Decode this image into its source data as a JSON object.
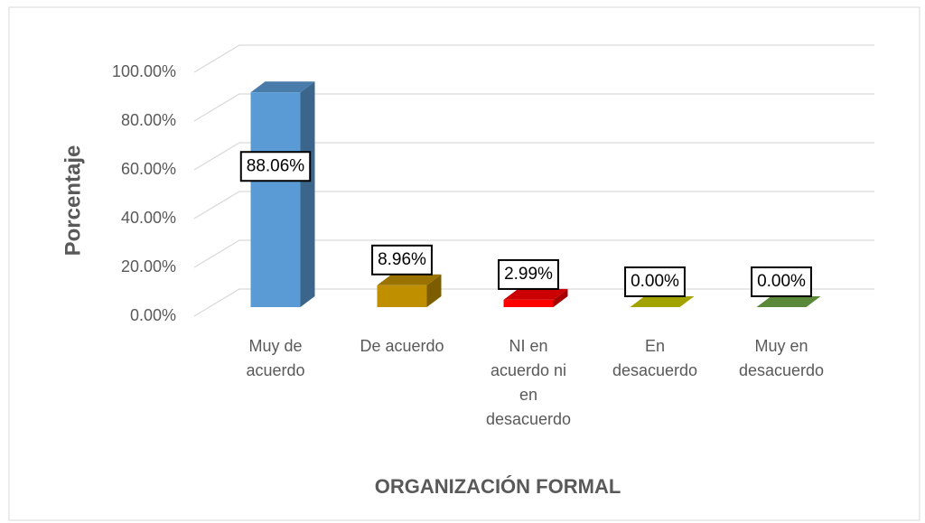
{
  "chart_data": {
    "type": "bar3d",
    "categories": [
      "Muy de acuerdo",
      "De acuerdo",
      "NI en acuerdo ni en desacuerdo",
      "En desacuerdo",
      "Muy en desacuerdo"
    ],
    "values": [
      88.06,
      8.96,
      2.99,
      0,
      0
    ],
    "value_labels": [
      "88.06%",
      "8.96%",
      "2.99%",
      "0.00%",
      "0.00%"
    ],
    "colors": [
      "#5b9bd5",
      "#bf8f00",
      "#ff0000",
      "#cccc00",
      "#70ad47"
    ],
    "ylabel": "Porcentaje",
    "xlabel": "ORGANIZACIÓN FORMAL",
    "ylim": [
      0,
      100
    ],
    "yticks": [
      {
        "value": 0,
        "label": "0.00%"
      },
      {
        "value": 20,
        "label": "20.00%"
      },
      {
        "value": 40,
        "label": "40.00%"
      },
      {
        "value": 60,
        "label": "60.00%"
      },
      {
        "value": 80,
        "label": "80.00%"
      },
      {
        "value": 100,
        "label": "100.00%"
      }
    ],
    "grid": true
  }
}
